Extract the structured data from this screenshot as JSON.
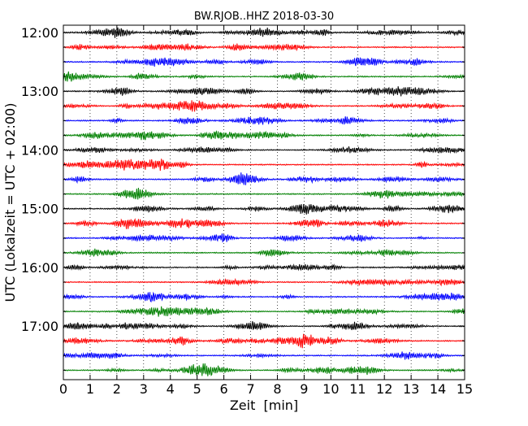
{
  "chart_data": {
    "type": "line",
    "subtype": "dayplot-seismogram",
    "title": "BW.RJOB..HHZ 2018-03-30",
    "xlabel": "Zeit  [min]",
    "ylabel": "UTC (Lokalzeit = UTC + 02:00)",
    "xlim": [
      0,
      15
    ],
    "x_ticks": [
      0,
      1,
      2,
      3,
      4,
      5,
      6,
      7,
      8,
      9,
      10,
      11,
      12,
      13,
      14,
      15
    ],
    "x_tick_labels": [
      "0",
      "1",
      "2",
      "3",
      "4",
      "5",
      "6",
      "7",
      "8",
      "9",
      "10",
      "11",
      "12",
      "13",
      "14",
      "15"
    ],
    "y_tick_labels": [
      "12:00",
      "13:00",
      "14:00",
      "15:00",
      "16:00",
      "17:00"
    ],
    "grid": "vertical dotted at each minute",
    "row_start_times": [
      "12:00",
      "12:15",
      "12:30",
      "12:45",
      "13:00",
      "13:15",
      "13:30",
      "13:45",
      "14:00",
      "14:15",
      "14:30",
      "14:45",
      "15:00",
      "15:15",
      "15:30",
      "15:45",
      "16:00",
      "16:15",
      "16:30",
      "16:45",
      "17:00",
      "17:15",
      "17:30",
      "17:45"
    ],
    "row_colors": [
      "#000000",
      "#ff0000",
      "#0000ff",
      "#008000"
    ],
    "legend": "none"
  }
}
